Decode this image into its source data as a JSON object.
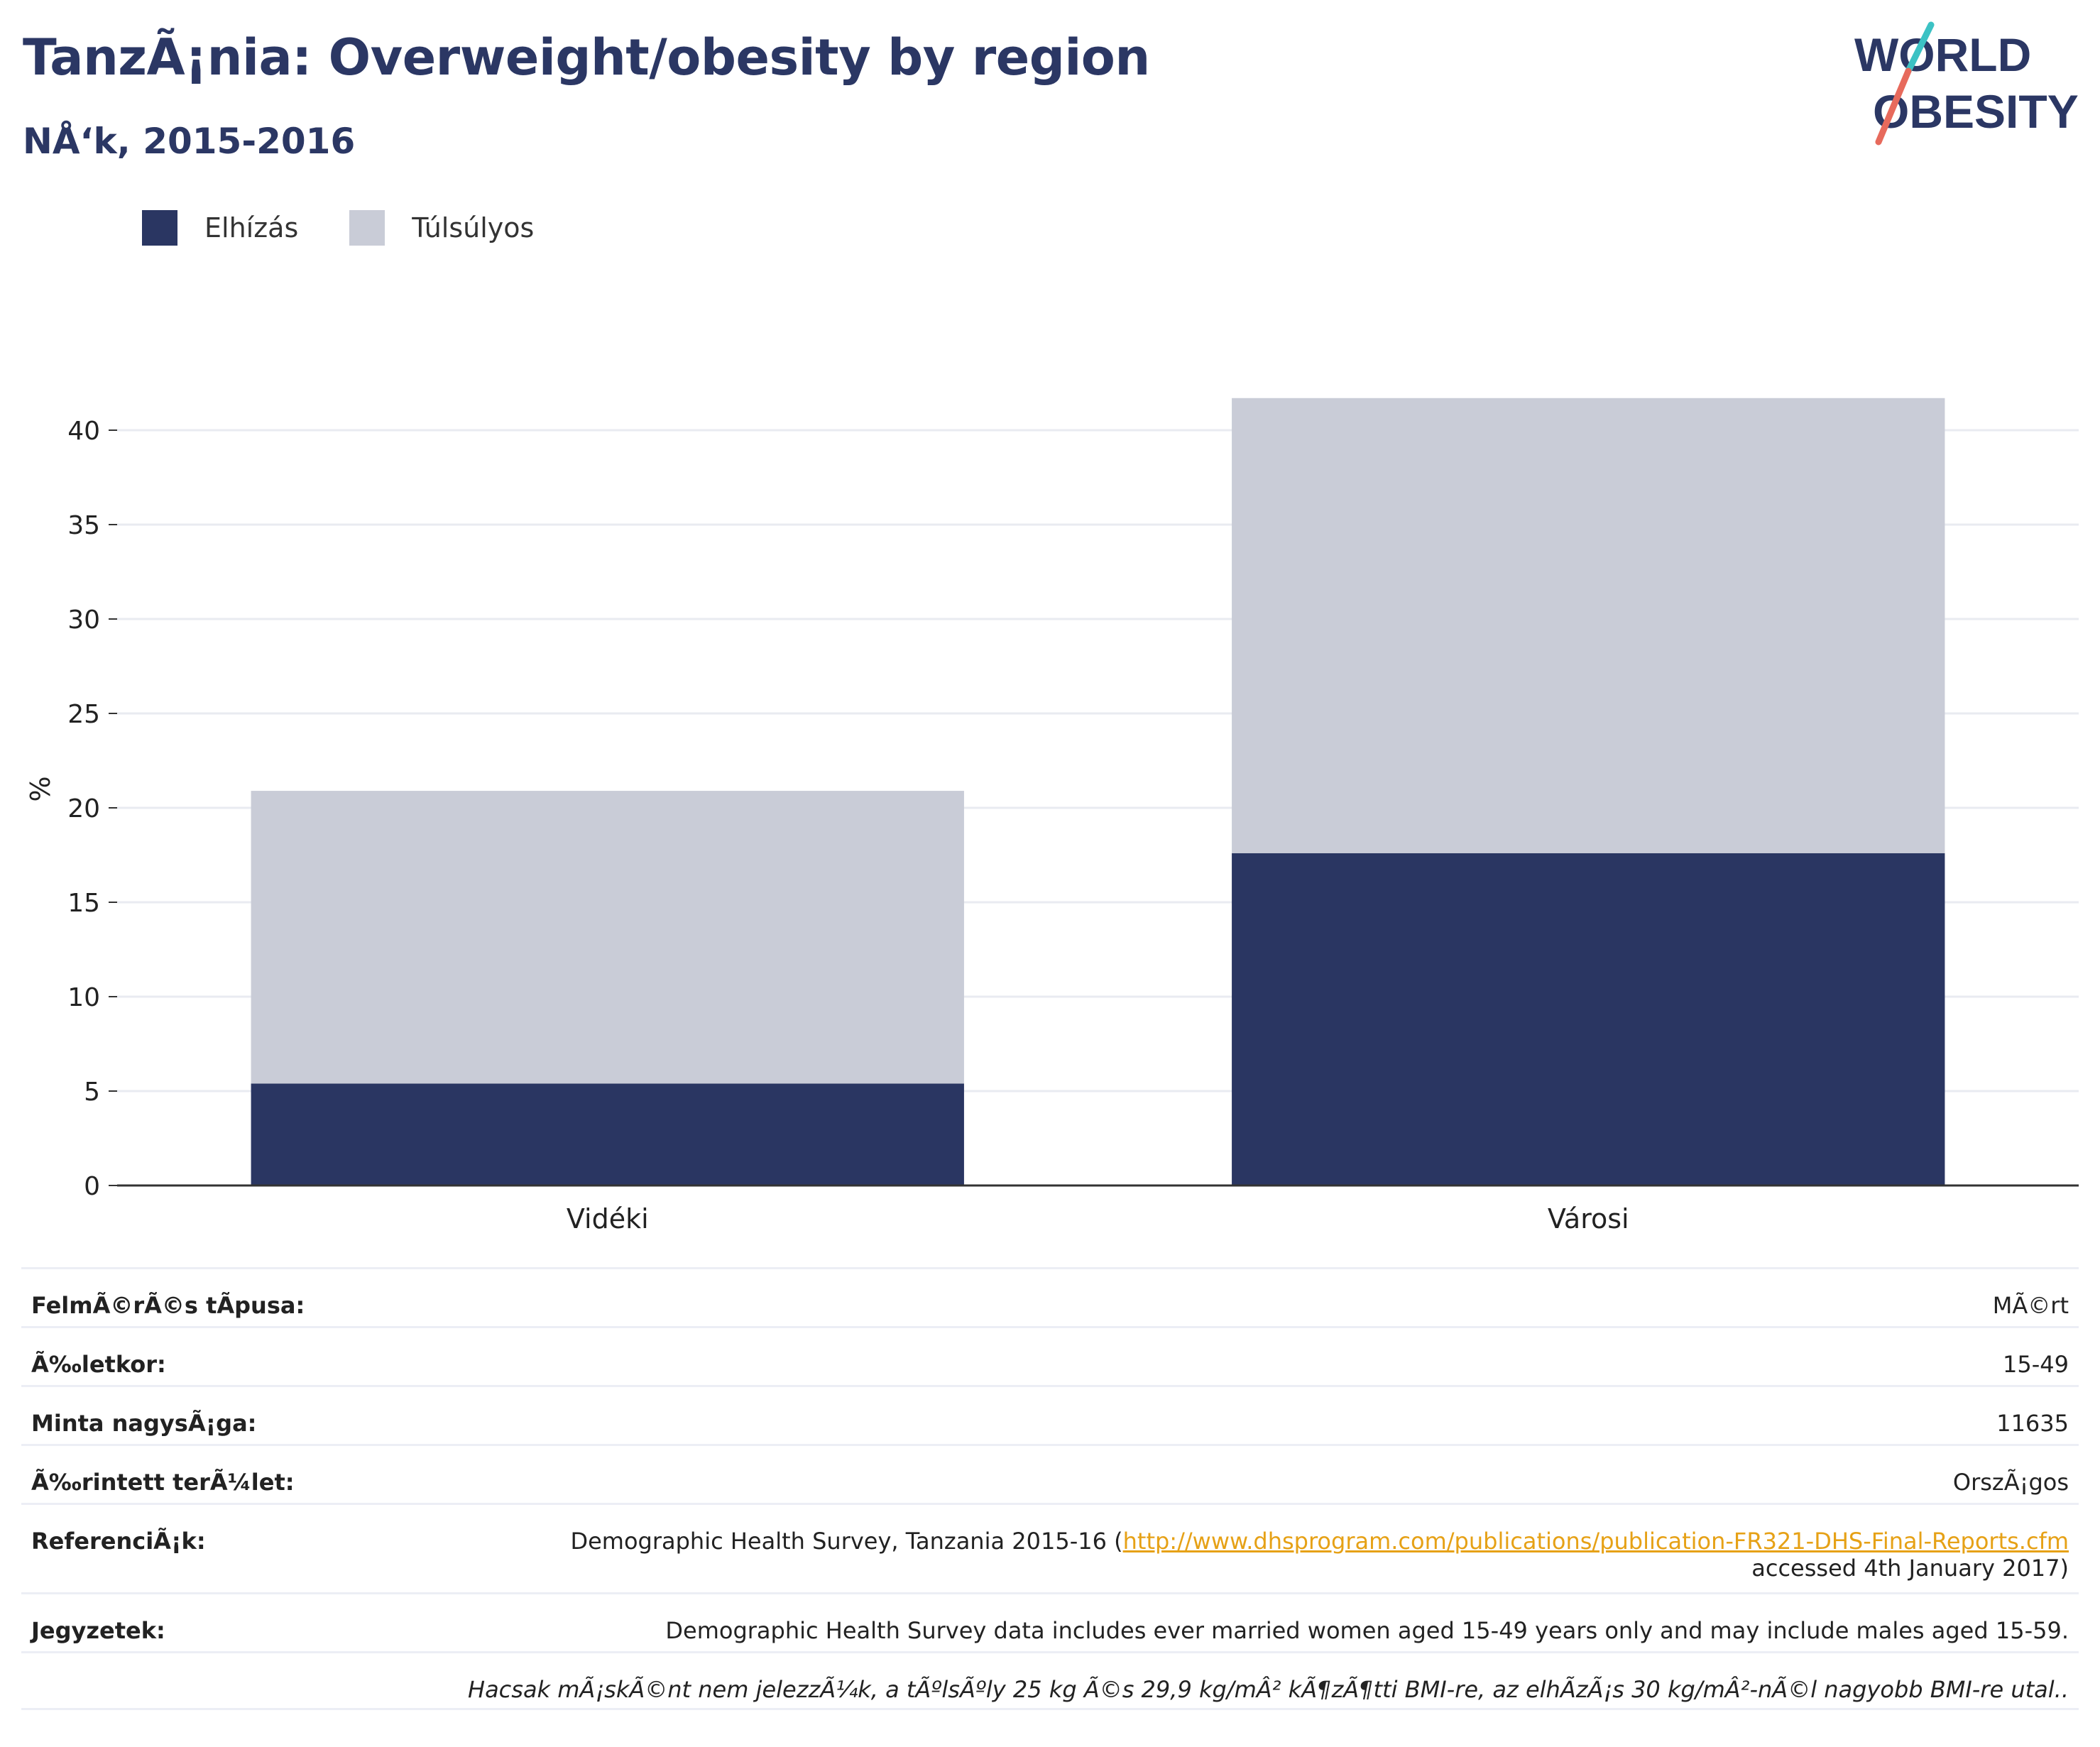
{
  "header": {
    "title": "TanzÃ¡nia: Overweight/obesity by region",
    "subtitle": "NÅ‘k, 2015-2016"
  },
  "logo": {
    "line1": "WORLD",
    "line2": "OBESITY",
    "icon": "world-obesity-logo"
  },
  "legend": [
    {
      "label": "Elhízás",
      "color": "#2a3662"
    },
    {
      "label": "Túlsúlyos",
      "color": "#c9ccd7"
    }
  ],
  "chart_data": {
    "type": "bar",
    "stacked": true,
    "categories": [
      "Vidéki",
      "Városi"
    ],
    "series": [
      {
        "name": "Elhízás",
        "color": "#2a3662",
        "values": [
          5.4,
          17.6
        ]
      },
      {
        "name": "Túlsúlyos",
        "color": "#c9ccd7",
        "values": [
          15.5,
          24.1
        ]
      }
    ],
    "ylabel": "%",
    "ylim": [
      0,
      42
    ],
    "yticks": [
      0,
      5,
      10,
      15,
      20,
      25,
      30,
      35,
      40
    ],
    "grid": true,
    "legend_position": "top-left"
  },
  "info": {
    "survey_type_label": "FelmÃ©rÃ©s tÃpusa:",
    "survey_type_value": "MÃ©rt",
    "age_label": "Ã‰letkor:",
    "age_value": "15-49",
    "sample_label": "Minta nagysÃ¡ga:",
    "sample_value": "11635",
    "area_label": "Ã‰rintett terÃ¼let:",
    "area_value": "OrszÃ¡gos",
    "ref_label": "ReferenciÃ¡k:",
    "ref_prefix": "Demographic Health Survey, Tanzania 2015-16 (",
    "ref_link": "http://www.dhsprogram.com/publications/publication-FR321-DHS-Final-Reports.cfm",
    "ref_suffix": "accessed 4th January 2017)",
    "notes_label": "Jegyzetek:",
    "notes_value": "Demographic Health Survey data includes ever married women aged 15-49 years only and may include males aged 15-59.",
    "notes_value2": "Hacsak mÃ¡skÃ©nt nem jelezzÃ¼k, a tÃºlsÃºly 25 kg Ã©s 29,9 kg/mÂ² kÃ¶zÃ¶tti BMI-re, az elhÃ­zÃ¡s 30 kg/mÂ²-nÃ©l nagyobb BMI-re utal.."
  }
}
